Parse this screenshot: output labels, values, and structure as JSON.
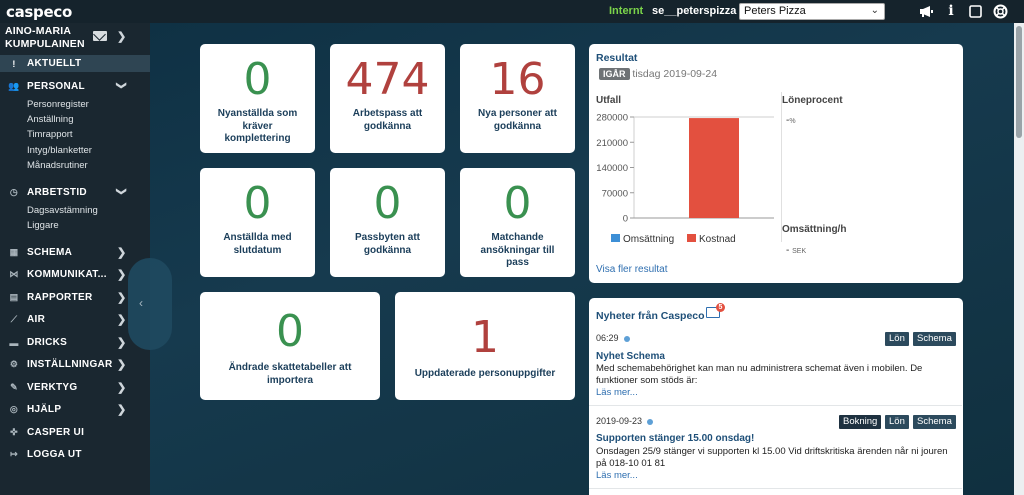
{
  "topbar": {
    "logo": "caspeco",
    "environment": "Internt",
    "username": "se__peterspizza",
    "location_select": "Peters Pizza",
    "icons": [
      "megaphone-icon",
      "info-icon",
      "note-icon",
      "lifebuoy-icon"
    ]
  },
  "sidebar": {
    "user_line1": "AINO-MARIA",
    "user_line2": "KUMPULAINEN",
    "active": "AKTUELLT",
    "sections": [
      {
        "label": "PERSONAL",
        "icon": "users-icon",
        "sub": [
          "Personregister",
          "Anställning",
          "Timrapport",
          "Intyg/blanketter",
          "Månadsrutiner"
        ]
      },
      {
        "label": "ARBETSTID",
        "icon": "clock-icon",
        "sub": [
          "Dagsavstämning",
          "Liggare"
        ]
      }
    ],
    "items": [
      {
        "label": "SCHEMA",
        "icon": "calendar-icon"
      },
      {
        "label": "KOMMUNIKAT...",
        "icon": "share-icon"
      },
      {
        "label": "RAPPORTER",
        "icon": "clipboard-icon"
      },
      {
        "label": "AIR",
        "icon": "chart-line-icon"
      },
      {
        "label": "DRICKS",
        "icon": "money-icon"
      },
      {
        "label": "INSTÄLLNINGAR",
        "icon": "gear-icon"
      },
      {
        "label": "VERKTYG",
        "icon": "wrench-icon"
      },
      {
        "label": "HJÄLP",
        "icon": "help-icon"
      },
      {
        "label": "CASPER UI",
        "icon": "gamepad-icon"
      },
      {
        "label": "LOGGA UT",
        "icon": "logout-icon"
      }
    ]
  },
  "cards": [
    {
      "value": "0",
      "label": "Nyanställda som kräver komplettering",
      "color": "green"
    },
    {
      "value": "474",
      "label": "Arbetspass att godkänna",
      "color": "red"
    },
    {
      "value": "16",
      "label": "Nya personer att godkänna",
      "color": "red"
    },
    {
      "value": "0",
      "label": "Anställda med slutdatum",
      "color": "green"
    },
    {
      "value": "0",
      "label": "Passbyten att godkänna",
      "color": "green"
    },
    {
      "value": "0",
      "label": "Matchande ansökningar till pass",
      "color": "green"
    },
    {
      "value": "0",
      "label": "Ändrade skattetabeller att importera",
      "color": "green"
    },
    {
      "value": "1",
      "label": "Uppdaterade personuppgifter",
      "color": "red"
    }
  ],
  "result": {
    "title": "Resultat",
    "badge": "IGÅR",
    "date": "tisdag 2019-09-24",
    "outfall_label": "Utfall",
    "lonprocent_label": "Löneprocent",
    "lonprocent_value": "-",
    "lonprocent_unit": "%",
    "omsattning_label": "Omsättning/h",
    "omsattning_value": "-",
    "omsattning_unit": "SEK",
    "more_link": "Visa fler resultat"
  },
  "chart_data": {
    "type": "bar",
    "categories": [
      "Utfall"
    ],
    "series": [
      {
        "name": "Omsättning",
        "values": [
          0
        ],
        "color": "#3d8fd6"
      },
      {
        "name": "Kostnad",
        "values": [
          277000
        ],
        "color": "#e3503f"
      }
    ],
    "y_ticks": [
      "280000",
      "210000",
      "140000",
      "70000",
      "0"
    ],
    "ylim": [
      0,
      280000
    ],
    "legend": "bottom"
  },
  "news": {
    "title": "Nyheter från Caspeco",
    "badge_count": "5",
    "items": [
      {
        "time": "06:29",
        "tags": [
          "Lön",
          "Schema"
        ],
        "headline": "Nyhet Schema",
        "body": "Med schemabehörighet kan man nu administrera schemat även i mobilen. De funktioner som stöds är:",
        "more": "Läs mer..."
      },
      {
        "time": "2019-09-23",
        "tags": [
          "Bokning",
          "Lön",
          "Schema"
        ],
        "headline": "Supporten stänger 15.00 onsdag!",
        "body": "Onsdagen 25/9 stänger vi supporten kl 15.00 Vid driftskritiska ärenden når ni jouren på 018-10 01 81",
        "more": "Läs mer..."
      }
    ]
  }
}
